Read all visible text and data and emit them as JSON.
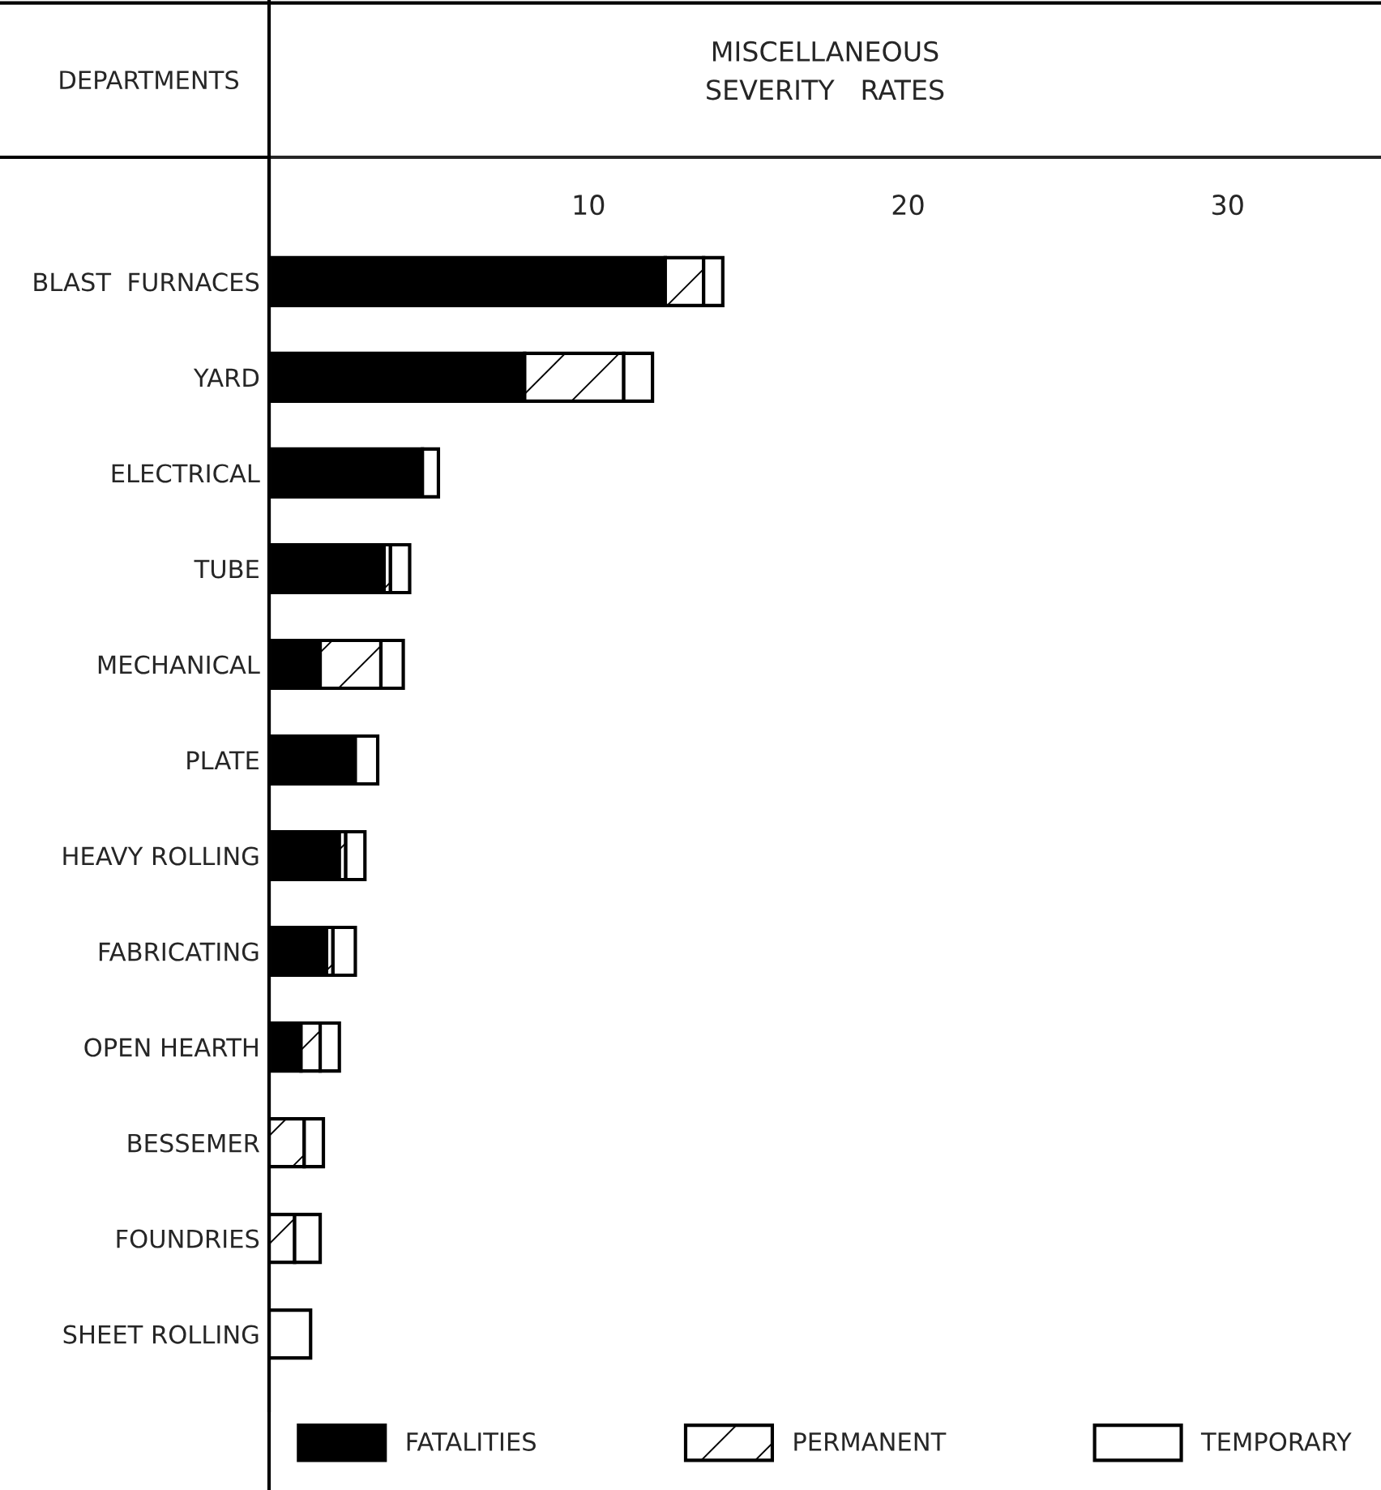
{
  "chart_data": {
    "type": "bar",
    "orientation": "horizontal",
    "stacked": true,
    "title": "MISCELLANEOUS\nSEVERITY   RATES",
    "ylabel": "DEPARTMENTS",
    "categories": [
      "BLAST  FURNACES",
      "YARD",
      "ELECTRICAL",
      "TUBE",
      "MECHANICAL",
      "PLATE",
      "HEAVY ROLLING",
      "FABRICATING",
      "OPEN HEARTH",
      "BESSEMER",
      "FOUNDRIES",
      "SHEET ROLLING"
    ],
    "series": [
      {
        "name": "FATALITIES",
        "color": "#000000",
        "values": [
          12.4,
          8.0,
          4.8,
          3.6,
          1.6,
          2.7,
          2.2,
          1.8,
          1.0,
          0,
          0,
          0
        ]
      },
      {
        "name": "PERMANENT",
        "color": "#ffffff",
        "values": [
          1.2,
          3.1,
          0,
          0.2,
          1.9,
          0,
          0.2,
          0.2,
          0.6,
          1.1,
          0.8,
          0
        ]
      },
      {
        "name": "TEMPORARY",
        "color": "#ffffff",
        "values": [
          0.6,
          0.9,
          0.5,
          0.6,
          0.7,
          0.7,
          0.6,
          0.7,
          0.6,
          0.6,
          0.8,
          1.3
        ]
      }
    ],
    "xlim": [
      0,
      34.8
    ],
    "xticks": [
      10,
      20,
      30
    ],
    "grid": false,
    "legend": "bottom"
  }
}
